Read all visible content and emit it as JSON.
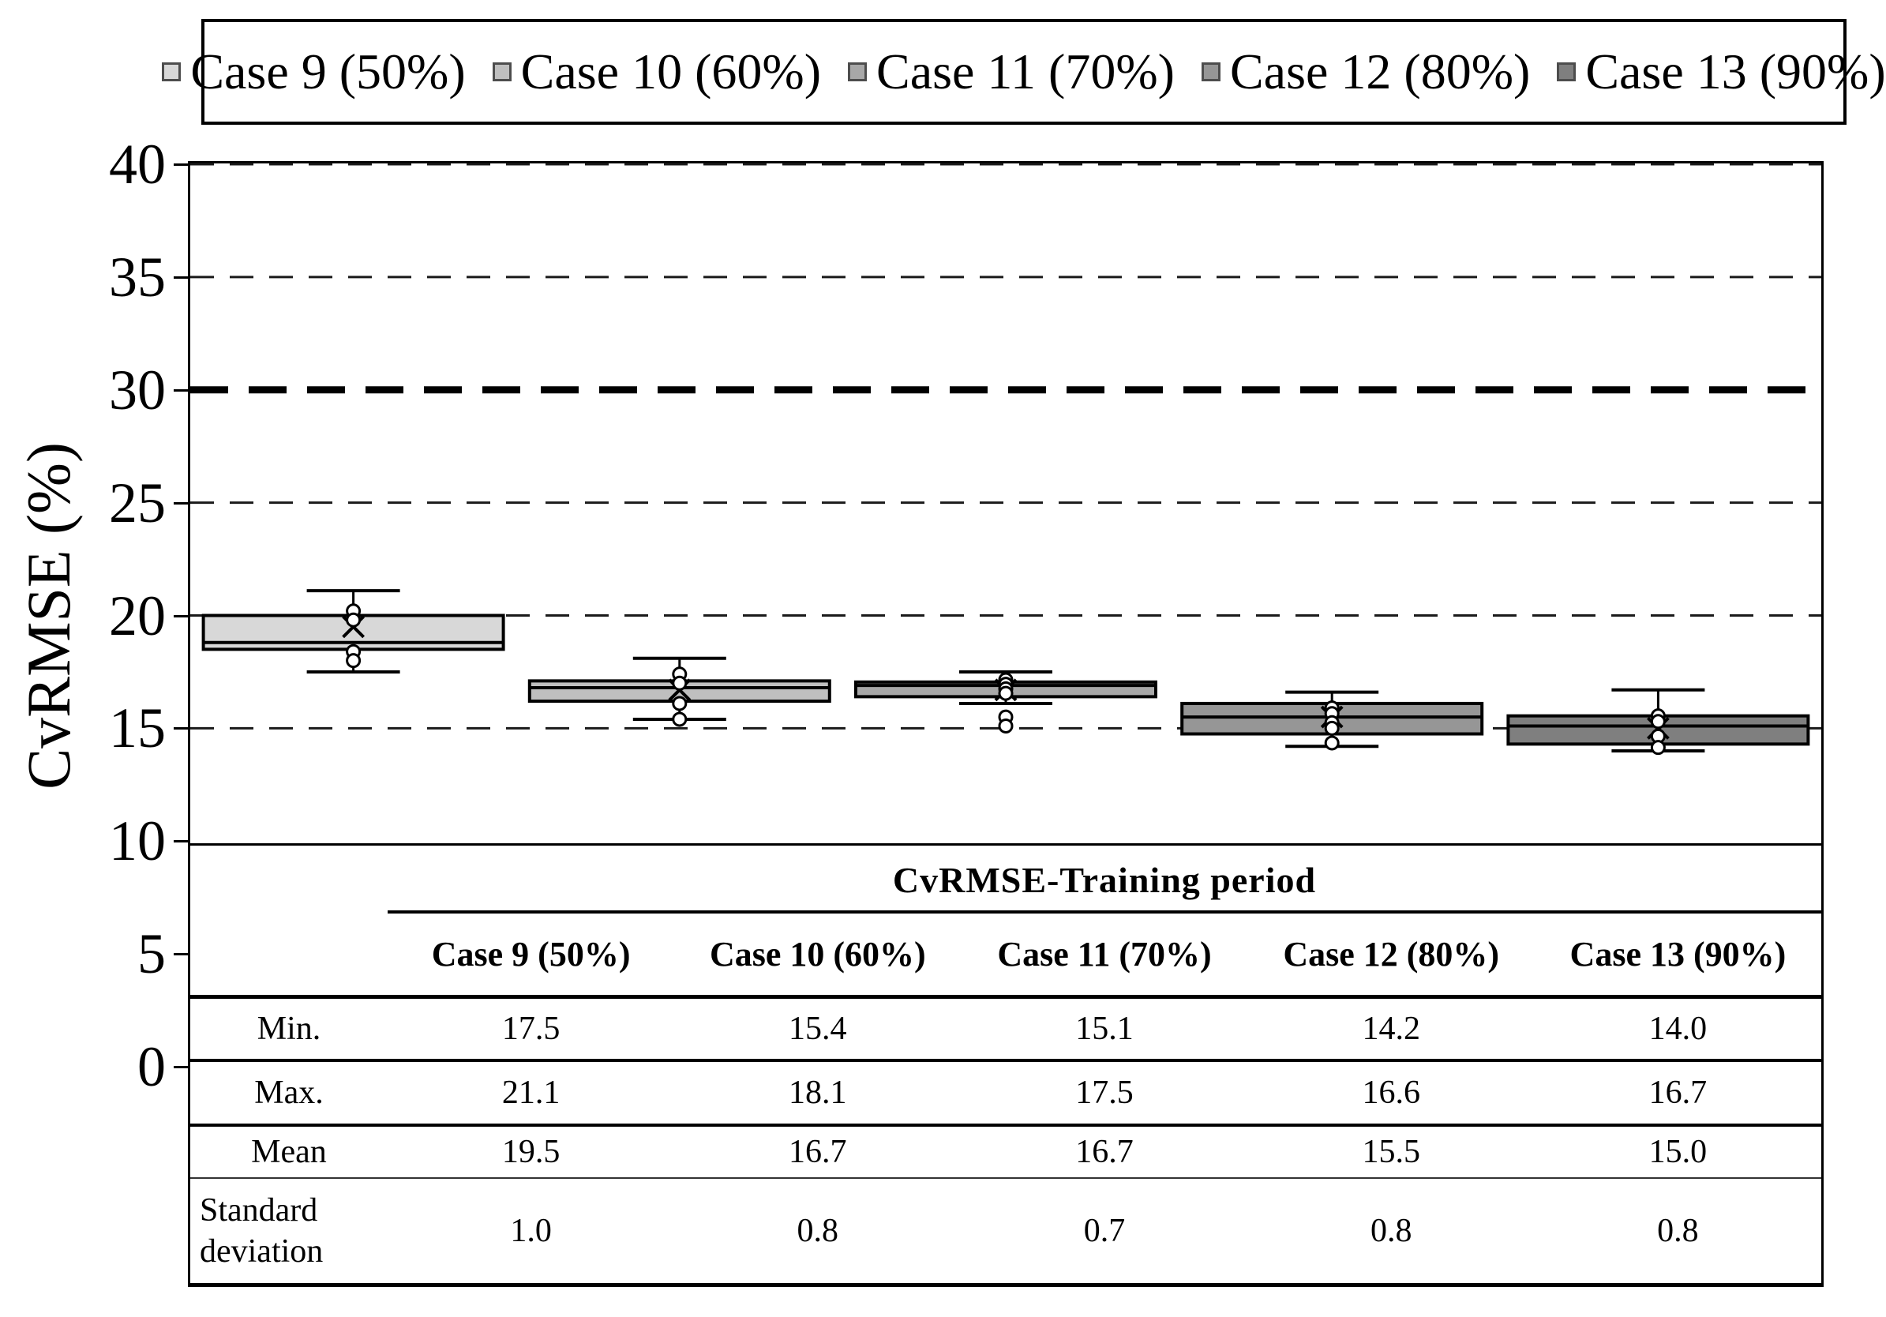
{
  "legend": {
    "items": [
      {
        "label": "Case 9 (50%)",
        "color": "#d8d8d8"
      },
      {
        "label": "Case 10 (60%)",
        "color": "#bfbfbf"
      },
      {
        "label": "Case 11 (70%)",
        "color": "#a8a8a8"
      },
      {
        "label": "Case 12 (80%)",
        "color": "#969696"
      },
      {
        "label": "Case 13 (90%)",
        "color": "#7f7f7f"
      }
    ]
  },
  "y_axis": {
    "title": "CvRMSE (%)",
    "min": 0,
    "max": 40,
    "tick_step": 5,
    "tick_labels": [
      "40",
      "35",
      "30",
      "25",
      "20",
      "15",
      "10",
      "5",
      "0"
    ]
  },
  "chart_data": {
    "type": "boxplot",
    "ylabel": "CvRMSE (%)",
    "ylim": [
      0,
      40
    ],
    "grid": {
      "thin_dashed_at": [
        40,
        35,
        25,
        20,
        15
      ],
      "thick_dashed_at": [
        30
      ]
    },
    "legend_position": "top",
    "categories": [
      "Case 9 (50%)",
      "Case 10 (60%)",
      "Case 11 (70%)",
      "Case 12 (80%)",
      "Case 13 (90%)"
    ],
    "series": [
      {
        "name": "Case 9 (50%)",
        "color": "#d8d8d8",
        "min": 17.5,
        "max": 21.1,
        "mean": 19.5,
        "std": 1.0,
        "q1": 18.5,
        "median": 18.8,
        "q3": 20.0,
        "whisker_low": 17.5,
        "whisker_high": 21.1,
        "points": [
          20.2,
          19.8,
          18.4,
          18.0
        ]
      },
      {
        "name": "Case 10 (60%)",
        "color": "#bfbfbf",
        "min": 15.4,
        "max": 18.1,
        "mean": 16.7,
        "std": 0.8,
        "q1": 16.2,
        "median": 16.8,
        "q3": 17.1,
        "whisker_low": 15.4,
        "whisker_high": 18.1,
        "points": [
          17.4,
          17.0,
          16.1,
          15.4
        ]
      },
      {
        "name": "Case 11 (70%)",
        "color": "#a8a8a8",
        "min": 15.1,
        "max": 17.5,
        "mean": 16.7,
        "std": 0.7,
        "q1": 16.4,
        "median": 16.9,
        "q3": 17.05,
        "whisker_low": 16.1,
        "whisker_high": 17.5,
        "points": [
          17.15,
          16.95,
          16.75,
          16.55,
          15.5,
          15.1
        ]
      },
      {
        "name": "Case 12 (80%)",
        "color": "#969696",
        "min": 14.2,
        "max": 16.6,
        "mean": 15.5,
        "std": 0.8,
        "q1": 14.75,
        "median": 15.5,
        "q3": 16.1,
        "whisker_low": 14.2,
        "whisker_high": 16.6,
        "points": [
          15.9,
          15.65,
          15.25,
          15.0,
          14.35
        ]
      },
      {
        "name": "Case 13 (90%)",
        "color": "#7f7f7f",
        "min": 14.0,
        "max": 16.7,
        "mean": 15.0,
        "std": 0.8,
        "q1": 14.3,
        "median": 15.1,
        "q3": 15.55,
        "whisker_low": 14.0,
        "whisker_high": 16.7,
        "points": [
          15.55,
          15.3,
          14.65,
          14.15
        ]
      }
    ]
  },
  "table": {
    "title": "CvRMSE-Training period",
    "columns": [
      "Case 9 (50%)",
      "Case 10 (60%)",
      "Case 11 (70%)",
      "Case 12 (80%)",
      "Case 13 (90%)"
    ],
    "rows": [
      {
        "label": "Min.",
        "values": [
          "17.5",
          "15.4",
          "15.1",
          "14.2",
          "14.0"
        ]
      },
      {
        "label": "Max.",
        "values": [
          "21.1",
          "18.1",
          "17.5",
          "16.6",
          "16.7"
        ]
      },
      {
        "label": "Mean",
        "values": [
          "19.5",
          "16.7",
          "16.7",
          "15.5",
          "15.0"
        ]
      },
      {
        "label": "Standard deviation",
        "values": [
          "1.0",
          "0.8",
          "0.7",
          "0.8",
          "0.8"
        ]
      }
    ],
    "label_two_lines": [
      "Standard",
      "deviation"
    ]
  }
}
